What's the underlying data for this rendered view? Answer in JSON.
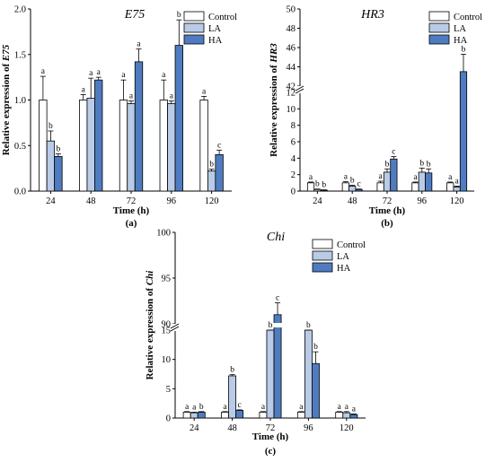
{
  "colors": {
    "Control": "#ffffff",
    "LA": "#b9cbe6",
    "HA": "#4f7cc0",
    "stroke": "#000000"
  },
  "chart_data": [
    {
      "panel": "(a)",
      "type": "bar",
      "title": "E75",
      "xlabel": "Time (h)",
      "ylabel": "Relative expression of E75",
      "ylim": [
        0,
        2.0
      ],
      "yticks": [
        "0.0",
        "0.5",
        "1.0",
        "1.5",
        "2.0"
      ],
      "categories": [
        "24",
        "48",
        "72",
        "96",
        "120"
      ],
      "legend_position": "top-right",
      "series": [
        {
          "name": "Control",
          "values": [
            1.0,
            1.0,
            1.0,
            1.0,
            1.0
          ],
          "errors": [
            0.26,
            0.06,
            0.22,
            0.22,
            0.04
          ],
          "letters": [
            "a",
            "a",
            "a",
            "a",
            "a"
          ]
        },
        {
          "name": "LA",
          "values": [
            0.55,
            1.02,
            0.96,
            0.96,
            0.22
          ],
          "errors": [
            0.11,
            0.22,
            0.03,
            0.03,
            0.02
          ],
          "letters": [
            "b",
            "a",
            "a",
            "a",
            "b"
          ]
        },
        {
          "name": "HA",
          "values": [
            0.38,
            1.22,
            1.42,
            1.6,
            0.4
          ],
          "errors": [
            0.03,
            0.03,
            0.14,
            0.28,
            0.05
          ],
          "letters": [
            "b",
            "a",
            "a",
            "b",
            "c"
          ]
        }
      ]
    },
    {
      "panel": "(b)",
      "type": "bar",
      "title": "HR3",
      "xlabel": "Time (h)",
      "ylabel": "Relative expression of HR3",
      "broken_axis": {
        "lower": [
          0,
          12
        ],
        "upper": [
          42,
          50
        ]
      },
      "yticks": [
        "0",
        "2",
        "4",
        "6",
        "8",
        "10",
        "12",
        "42",
        "44",
        "46",
        "48",
        "50"
      ],
      "categories": [
        "24",
        "48",
        "72",
        "96",
        "120"
      ],
      "legend_position": "top-right",
      "series": [
        {
          "name": "Control",
          "values": [
            1.0,
            1.0,
            1.0,
            1.0,
            1.0
          ],
          "errors": [
            0.1,
            0.15,
            0.2,
            0.1,
            0.1
          ],
          "letters": [
            "a",
            "a",
            "a",
            "a",
            "a"
          ]
        },
        {
          "name": "LA",
          "values": [
            0.2,
            0.6,
            2.3,
            2.3,
            0.5
          ],
          "errors": [
            0.05,
            0.1,
            0.4,
            0.5,
            0.1
          ],
          "letters": [
            "b",
            "b",
            "b",
            "b",
            "a"
          ]
        },
        {
          "name": "HA",
          "values": [
            0.1,
            0.2,
            3.9,
            2.2,
            43.5
          ],
          "errors": [
            0.05,
            0.05,
            0.3,
            0.5,
            1.8
          ],
          "letters": [
            "b",
            "c",
            "c",
            "b",
            "b"
          ]
        }
      ]
    },
    {
      "panel": "(c)",
      "type": "bar",
      "title": "Chi",
      "xlabel": "Time (h)",
      "ylabel": "Relative expression of Chi",
      "broken_axis": {
        "lower": [
          0,
          15
        ],
        "upper": [
          90,
          100
        ]
      },
      "yticks": [
        "0",
        "5",
        "10",
        "15",
        "90",
        "95",
        "100"
      ],
      "categories": [
        "24",
        "48",
        "72",
        "96",
        "120"
      ],
      "legend_position": "top-right",
      "series": [
        {
          "name": "Control",
          "values": [
            1.0,
            1.0,
            1.0,
            1.0,
            1.0
          ],
          "errors": [
            0.1,
            0.1,
            0.1,
            0.1,
            0.1
          ],
          "letters": [
            "a",
            "a",
            "a",
            "a",
            "a"
          ]
        },
        {
          "name": "LA",
          "values": [
            0.9,
            7.2,
            19.3,
            15.3,
            0.9
          ],
          "errors": [
            0.1,
            0.2,
            0.7,
            0.6,
            0.2
          ],
          "letters": [
            "a",
            "b",
            "b",
            "b",
            "a"
          ]
        },
        {
          "name": "HA",
          "values": [
            1.0,
            1.3,
            91.0,
            9.3,
            0.6
          ],
          "errors": [
            0.1,
            0.1,
            1.3,
            2.0,
            0.1
          ],
          "letters": [
            "b",
            "c",
            "c",
            "b",
            "a"
          ]
        }
      ]
    }
  ]
}
